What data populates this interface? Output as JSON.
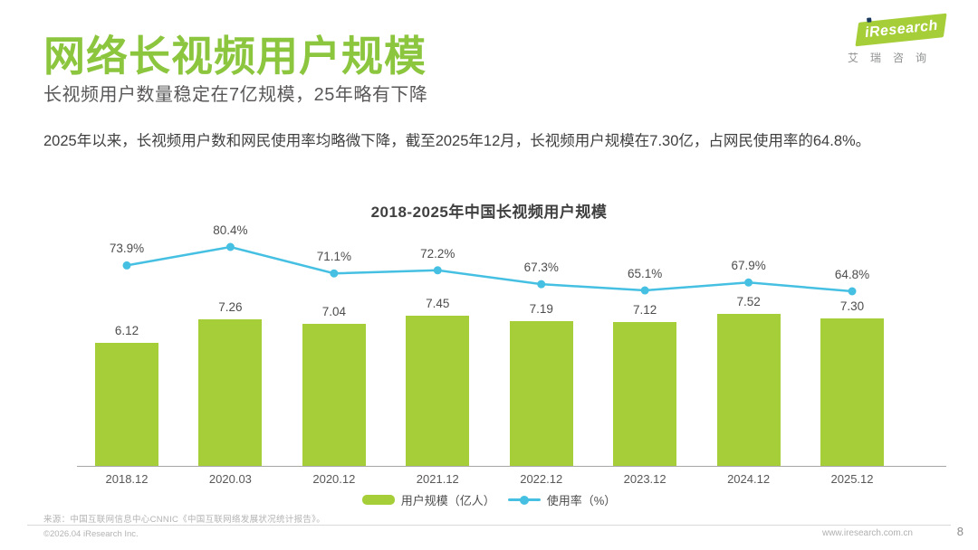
{
  "page": {
    "title": "网络长视频用户规模",
    "subtitle": "长视频用户数量稳定在7亿规模，25年略有下降",
    "body": "2025年以来，长视频用户数和网民使用率均略微下降，截至2025年12月，长视频用户规模在7.30亿，占网民使用率的64.8%。",
    "source": "来源：中国互联网信息中心CNNIC《中国互联网络发展状况统计报告》。",
    "copyright": "©2026.04 iResearch Inc.",
    "website": "www.iresearch.com.cn",
    "page_number": "8"
  },
  "logo": {
    "brand": "iResearch",
    "brand_cn": "艾瑞咨询"
  },
  "colors": {
    "title_green": "#8cc63f",
    "bar_green": "#a6ce39",
    "line_cyan": "#46c0e2"
  },
  "chart_data": {
    "type": "bar",
    "subtype": "bar+line combo",
    "title": "2018-2025年中国长视频用户规模",
    "categories": [
      "2018.12",
      "2020.03",
      "2020.12",
      "2021.12",
      "2022.12",
      "2023.12",
      "2024.12",
      "2025.12"
    ],
    "series": [
      {
        "name": "用户规模（亿人）",
        "type": "bar",
        "color": "#a6ce39",
        "values": [
          6.12,
          7.26,
          7.04,
          7.45,
          7.19,
          7.12,
          7.52,
          7.3
        ]
      },
      {
        "name": "使用率（%）",
        "type": "line",
        "color": "#46c0e2",
        "values": [
          73.9,
          80.4,
          71.1,
          72.2,
          67.3,
          65.1,
          67.9,
          64.8
        ]
      }
    ],
    "bar_ylim": [
      0,
      9
    ],
    "line_ylim": [
      0,
      100
    ],
    "grid": false,
    "legend_position": "bottom",
    "value_labels": true
  }
}
